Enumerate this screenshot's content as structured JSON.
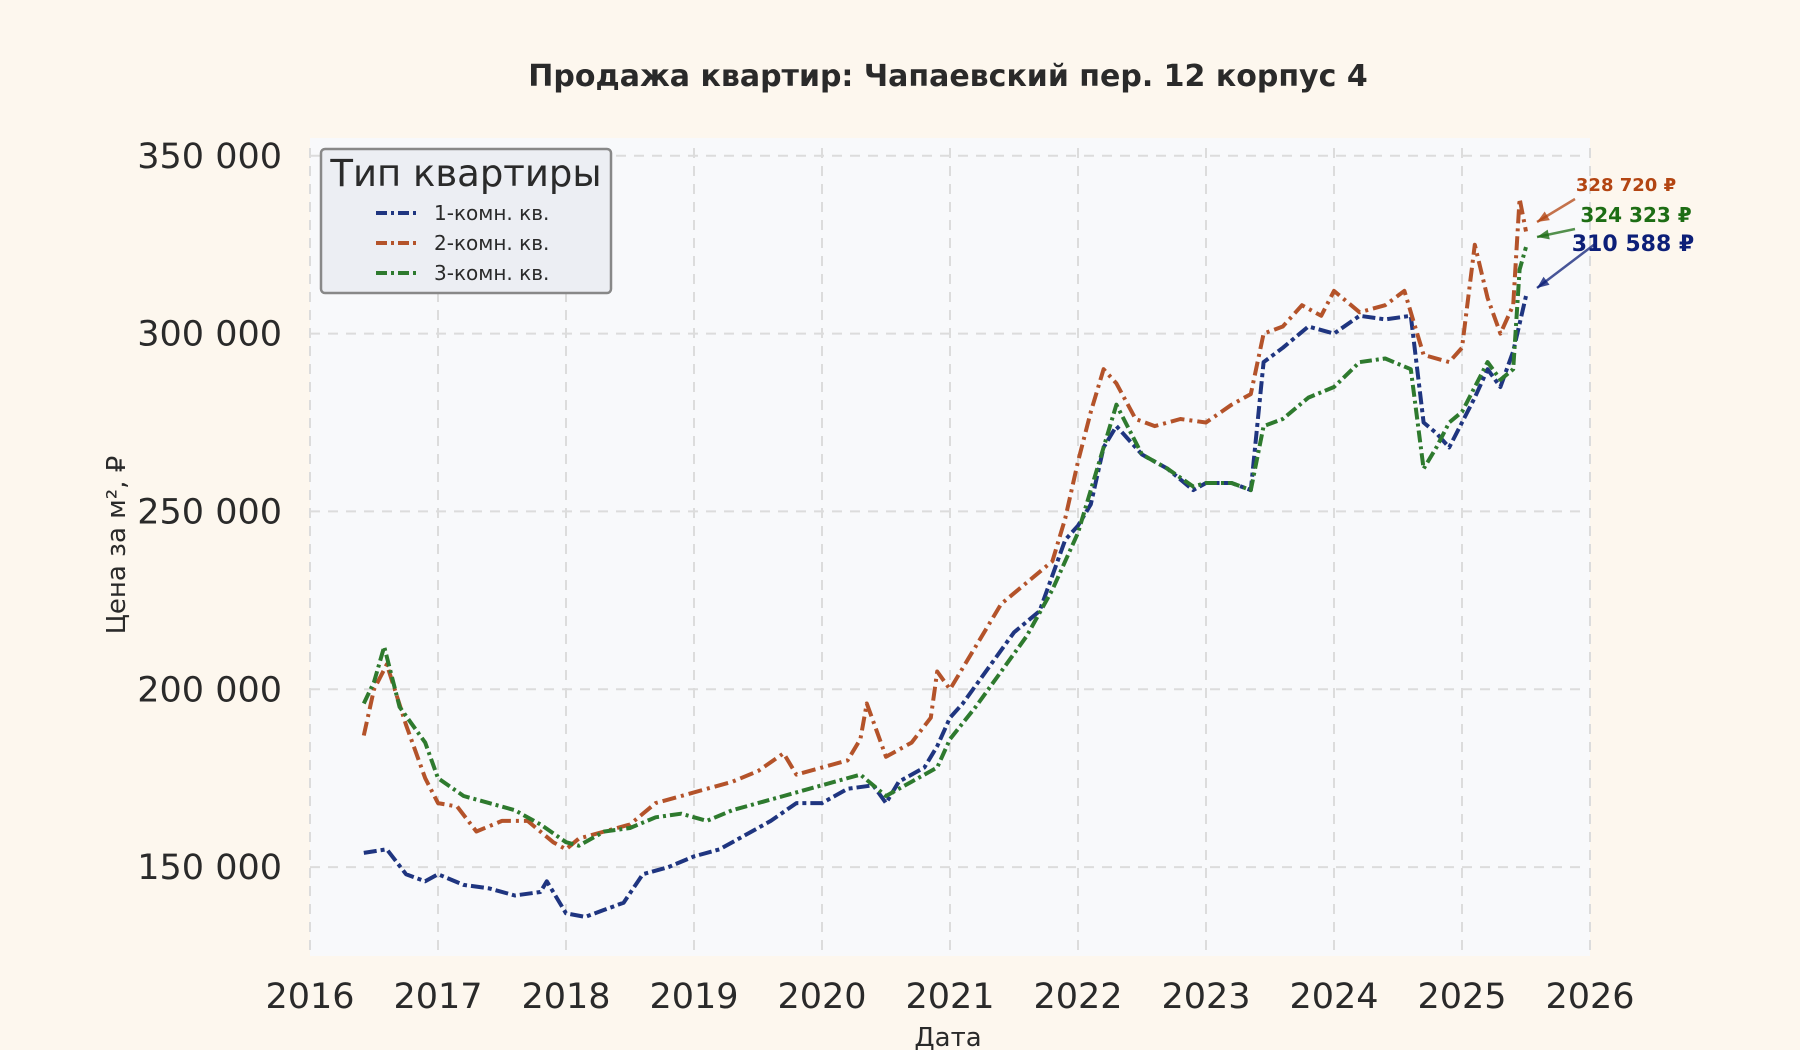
{
  "chart_data": {
    "type": "line",
    "title": "Продажа квартир: Чапаевский пер. 12 корпус 4",
    "xlabel": "Дата",
    "ylabel": "Цена за м², ₽",
    "xlim": [
      2016,
      2026
    ],
    "ylim": [
      125000,
      355000
    ],
    "x_ticks": [
      {
        "value": 2016,
        "label": "2016"
      },
      {
        "value": 2017,
        "label": "2017"
      },
      {
        "value": 2018,
        "label": "2018"
      },
      {
        "value": 2019,
        "label": "2019"
      },
      {
        "value": 2020,
        "label": "2020"
      },
      {
        "value": 2021,
        "label": "2021"
      },
      {
        "value": 2022,
        "label": "2022"
      },
      {
        "value": 2023,
        "label": "2023"
      },
      {
        "value": 2024,
        "label": "2024"
      },
      {
        "value": 2025,
        "label": "2025"
      },
      {
        "value": 2026,
        "label": "2026"
      }
    ],
    "y_ticks": [
      {
        "value": 150000,
        "label": "150 000"
      },
      {
        "value": 200000,
        "label": "200 000"
      },
      {
        "value": 250000,
        "label": "250 000"
      },
      {
        "value": 300000,
        "label": "300 000"
      },
      {
        "value": 350000,
        "label": "350 000"
      }
    ],
    "grid": true,
    "legend": {
      "title": "Тип квартиры",
      "placement": "top-left"
    },
    "series": [
      {
        "name": "1-комн. кв.",
        "color": "#1f3580",
        "end_label": "310 588 ₽",
        "label_color": "#0d1f78",
        "x": [
          2016.42,
          2016.6,
          2016.75,
          2016.9,
          2017.0,
          2017.2,
          2017.4,
          2017.6,
          2017.8,
          2017.85,
          2018.0,
          2018.15,
          2018.3,
          2018.45,
          2018.6,
          2018.8,
          2019.0,
          2019.2,
          2019.4,
          2019.6,
          2019.8,
          2020.0,
          2020.2,
          2020.4,
          2020.5,
          2020.6,
          2020.8,
          2020.9,
          2021.0,
          2021.1,
          2021.3,
          2021.5,
          2021.7,
          2021.9,
          2022.0,
          2022.1,
          2022.2,
          2022.3,
          2022.5,
          2022.7,
          2022.9,
          2023.0,
          2023.2,
          2023.35,
          2023.45,
          2023.6,
          2023.8,
          2024.0,
          2024.2,
          2024.4,
          2024.6,
          2024.7,
          2024.8,
          2024.9,
          2025.0,
          2025.1,
          2025.2,
          2025.3,
          2025.4,
          2025.5
        ],
        "y": [
          154000,
          155000,
          148000,
          146000,
          148000,
          145000,
          144000,
          142000,
          143000,
          146000,
          137000,
          136000,
          138000,
          140000,
          148000,
          150000,
          153000,
          155000,
          159000,
          163000,
          168000,
          168000,
          172000,
          173000,
          168000,
          174000,
          178000,
          184000,
          192000,
          196000,
          206000,
          216000,
          222000,
          242000,
          246000,
          252000,
          268000,
          274000,
          266000,
          262000,
          256000,
          258000,
          258000,
          256000,
          292000,
          296000,
          302000,
          300000,
          305000,
          304000,
          305000,
          275000,
          272000,
          268000,
          275000,
          282000,
          290000,
          285000,
          295000,
          310588
        ]
      },
      {
        "name": "2-комн. кв.",
        "color": "#b4532a",
        "end_label": "328 720 ₽",
        "label_color": "#b34512",
        "x": [
          2016.42,
          2016.5,
          2016.6,
          2016.75,
          2016.9,
          2017.0,
          2017.15,
          2017.3,
          2017.5,
          2017.7,
          2017.9,
          2018.0,
          2018.1,
          2018.3,
          2018.5,
          2018.7,
          2018.9,
          2019.1,
          2019.3,
          2019.5,
          2019.7,
          2019.8,
          2020.0,
          2020.2,
          2020.3,
          2020.35,
          2020.5,
          2020.7,
          2020.85,
          2020.9,
          2021.0,
          2021.2,
          2021.4,
          2021.6,
          2021.8,
          2021.9,
          2022.0,
          2022.1,
          2022.2,
          2022.3,
          2022.45,
          2022.6,
          2022.8,
          2023.0,
          2023.2,
          2023.35,
          2023.45,
          2023.6,
          2023.75,
          2023.9,
          2024.0,
          2024.2,
          2024.4,
          2024.55,
          2024.7,
          2024.9,
          2025.0,
          2025.1,
          2025.2,
          2025.3,
          2025.4,
          2025.45,
          2025.5
        ],
        "y": [
          187000,
          200000,
          207000,
          190000,
          175000,
          168000,
          167000,
          160000,
          163000,
          163000,
          157000,
          155000,
          158000,
          160000,
          162000,
          168000,
          170000,
          172000,
          174000,
          177000,
          182000,
          176000,
          178000,
          180000,
          186000,
          196000,
          181000,
          185000,
          192000,
          205000,
          200000,
          212000,
          224000,
          230000,
          236000,
          248000,
          264000,
          278000,
          290000,
          286000,
          276000,
          274000,
          276000,
          275000,
          280000,
          283000,
          300000,
          302000,
          308000,
          305000,
          312000,
          306000,
          308000,
          312000,
          294000,
          292000,
          296000,
          325000,
          310000,
          300000,
          308000,
          338000,
          328720
        ]
      },
      {
        "name": "3-комн. кв.",
        "color": "#2e7a2e",
        "end_label": "324 323 ₽",
        "label_color": "#1d6d14",
        "x": [
          2016.42,
          2016.5,
          2016.58,
          2016.7,
          2016.8,
          2016.9,
          2017.0,
          2017.2,
          2017.4,
          2017.6,
          2017.8,
          2018.0,
          2018.1,
          2018.3,
          2018.5,
          2018.7,
          2018.9,
          2019.1,
          2019.3,
          2019.5,
          2019.7,
          2019.9,
          2020.1,
          2020.3,
          2020.5,
          2020.7,
          2020.9,
          2021.0,
          2021.2,
          2021.4,
          2021.6,
          2021.8,
          2022.0,
          2022.1,
          2022.2,
          2022.3,
          2022.5,
          2022.7,
          2022.9,
          2023.0,
          2023.2,
          2023.35,
          2023.45,
          2023.6,
          2023.8,
          2024.0,
          2024.2,
          2024.4,
          2024.6,
          2024.7,
          2024.8,
          2024.9,
          2025.0,
          2025.1,
          2025.2,
          2025.3,
          2025.4,
          2025.45,
          2025.5
        ],
        "y": [
          196000,
          202000,
          212000,
          195000,
          190000,
          185000,
          175000,
          170000,
          168000,
          166000,
          162000,
          157000,
          156000,
          160000,
          161000,
          164000,
          165000,
          163000,
          166000,
          168000,
          170000,
          172000,
          174000,
          176000,
          170000,
          174000,
          178000,
          186000,
          195000,
          205000,
          215000,
          228000,
          244000,
          256000,
          268000,
          280000,
          266000,
          262000,
          257000,
          258000,
          258000,
          256000,
          274000,
          276000,
          282000,
          285000,
          292000,
          293000,
          290000,
          262000,
          268000,
          275000,
          278000,
          285000,
          292000,
          287000,
          290000,
          318000,
          324323
        ]
      }
    ]
  }
}
